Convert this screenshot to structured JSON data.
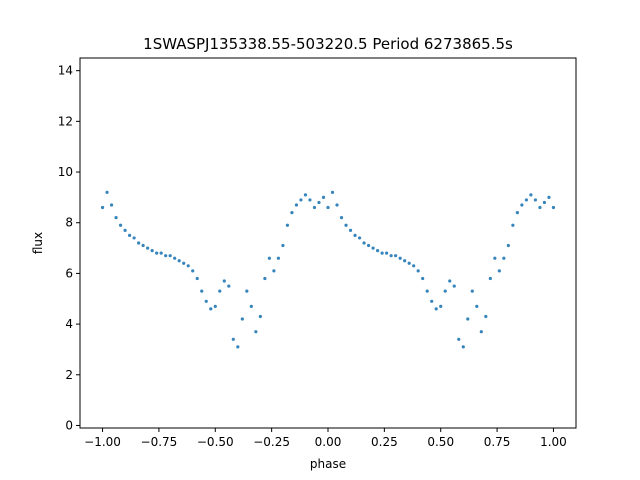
{
  "chart_data": {
    "type": "scatter",
    "title": "1SWASPJ135338.55-503220.5 Period 6273865.5s",
    "xlabel": "phase",
    "ylabel": "flux",
    "xlim": [
      -1.1,
      1.1
    ],
    "ylim": [
      -0.1,
      14.5
    ],
    "x_ticks": [
      -1.0,
      -0.75,
      -0.5,
      -0.25,
      0.0,
      0.25,
      0.5,
      0.75,
      1.0
    ],
    "x_tick_labels": [
      "−1.00",
      "−0.75",
      "−0.50",
      "−0.25",
      "0.00",
      "0.25",
      "0.50",
      "0.75",
      "1.00"
    ],
    "y_ticks": [
      0,
      2,
      4,
      6,
      8,
      10,
      12,
      14
    ],
    "y_tick_labels": [
      "0",
      "2",
      "4",
      "6",
      "8",
      "10",
      "12",
      "14"
    ],
    "grid": false,
    "marker_color": "#1f77b4",
    "series": [
      {
        "points": [
          [
            -1.0,
            8.6
          ],
          [
            -0.98,
            9.2
          ],
          [
            -0.96,
            8.7
          ],
          [
            -0.94,
            8.2
          ],
          [
            -0.92,
            7.9
          ],
          [
            -0.9,
            7.7
          ],
          [
            -0.88,
            7.5
          ],
          [
            -0.86,
            7.4
          ],
          [
            -0.84,
            7.2
          ],
          [
            -0.82,
            7.1
          ],
          [
            -0.8,
            7.0
          ],
          [
            -0.78,
            6.9
          ],
          [
            -0.76,
            6.8
          ],
          [
            -0.74,
            6.8
          ],
          [
            -0.72,
            6.7
          ],
          [
            -0.7,
            6.7
          ],
          [
            -0.68,
            6.6
          ],
          [
            -0.66,
            6.5
          ],
          [
            -0.64,
            6.4
          ],
          [
            -0.62,
            6.3
          ],
          [
            -0.6,
            6.1
          ],
          [
            -0.58,
            5.8
          ],
          [
            -0.56,
            5.3
          ],
          [
            -0.54,
            4.9
          ],
          [
            -0.52,
            4.6
          ],
          [
            -0.5,
            4.7
          ],
          [
            -0.48,
            5.3
          ],
          [
            -0.46,
            5.7
          ],
          [
            -0.44,
            5.5
          ],
          [
            -0.42,
            3.4
          ],
          [
            -0.4,
            3.1
          ],
          [
            -0.38,
            4.2
          ],
          [
            -0.36,
            5.3
          ],
          [
            -0.34,
            4.7
          ],
          [
            -0.32,
            3.7
          ],
          [
            -0.3,
            4.3
          ],
          [
            -0.28,
            5.8
          ],
          [
            -0.26,
            6.6
          ],
          [
            -0.24,
            6.1
          ],
          [
            -0.22,
            6.6
          ],
          [
            -0.2,
            7.1
          ],
          [
            -0.18,
            7.9
          ],
          [
            -0.16,
            8.4
          ],
          [
            -0.14,
            8.7
          ],
          [
            -0.12,
            8.9
          ],
          [
            -0.1,
            9.1
          ],
          [
            -0.08,
            8.9
          ],
          [
            -0.06,
            8.6
          ],
          [
            -0.04,
            8.8
          ],
          [
            -0.02,
            9.0
          ],
          [
            0.0,
            8.6
          ],
          [
            0.02,
            9.2
          ],
          [
            0.04,
            8.7
          ],
          [
            0.06,
            8.2
          ],
          [
            0.08,
            7.9
          ],
          [
            0.1,
            7.7
          ],
          [
            0.12,
            7.5
          ],
          [
            0.14,
            7.4
          ],
          [
            0.16,
            7.2
          ],
          [
            0.18,
            7.1
          ],
          [
            0.2,
            7.0
          ],
          [
            0.22,
            6.9
          ],
          [
            0.24,
            6.8
          ],
          [
            0.26,
            6.8
          ],
          [
            0.28,
            6.7
          ],
          [
            0.3,
            6.7
          ],
          [
            0.32,
            6.6
          ],
          [
            0.34,
            6.5
          ],
          [
            0.36,
            6.4
          ],
          [
            0.38,
            6.3
          ],
          [
            0.4,
            6.1
          ],
          [
            0.42,
            5.8
          ],
          [
            0.44,
            5.3
          ],
          [
            0.46,
            4.9
          ],
          [
            0.48,
            4.6
          ],
          [
            0.5,
            4.7
          ],
          [
            0.52,
            5.3
          ],
          [
            0.54,
            5.7
          ],
          [
            0.56,
            5.5
          ],
          [
            0.58,
            3.4
          ],
          [
            0.6,
            3.1
          ],
          [
            0.62,
            4.2
          ],
          [
            0.64,
            5.3
          ],
          [
            0.66,
            4.7
          ],
          [
            0.68,
            3.7
          ],
          [
            0.7,
            4.3
          ],
          [
            0.72,
            5.8
          ],
          [
            0.74,
            6.6
          ],
          [
            0.76,
            6.1
          ],
          [
            0.78,
            6.6
          ],
          [
            0.8,
            7.1
          ],
          [
            0.82,
            7.9
          ],
          [
            0.84,
            8.4
          ],
          [
            0.86,
            8.7
          ],
          [
            0.88,
            8.9
          ],
          [
            0.9,
            9.1
          ],
          [
            0.92,
            8.9
          ],
          [
            0.94,
            8.6
          ],
          [
            0.96,
            8.8
          ],
          [
            0.98,
            9.0
          ],
          [
            1.0,
            8.6
          ]
        ]
      }
    ]
  }
}
